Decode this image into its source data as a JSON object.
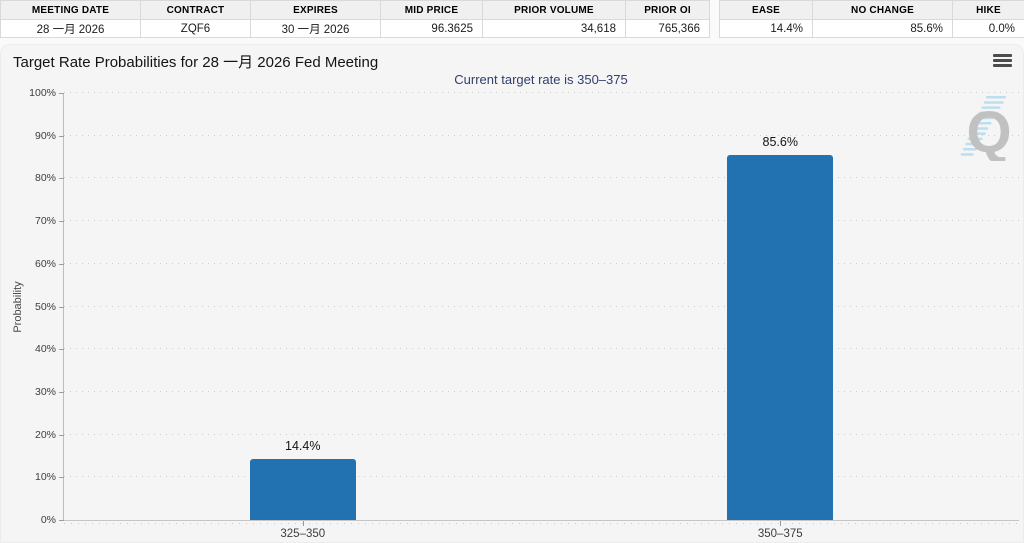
{
  "summary_table": {
    "columns": [
      {
        "label": "MEETING DATE",
        "value": "28 一月 2026"
      },
      {
        "label": "CONTRACT",
        "value": "ZQF6"
      },
      {
        "label": "EXPIRES",
        "value": "30 一月 2026"
      },
      {
        "label": "MID PRICE",
        "value": "96.3625"
      },
      {
        "label": "PRIOR VOLUME",
        "value": "34,618"
      },
      {
        "label": "PRIOR OI",
        "value": "765,366"
      }
    ]
  },
  "action_table": {
    "columns": [
      {
        "label": "EASE",
        "value": "14.4%"
      },
      {
        "label": "NO CHANGE",
        "value": "85.6%"
      },
      {
        "label": "HIKE",
        "value": "0.0%"
      }
    ]
  },
  "chart_data": {
    "type": "bar",
    "title": "Target Rate Probabilities for 28 一月 2026 Fed Meeting",
    "subtitle": "Current target rate is 350–375",
    "categories": [
      "325–350",
      "350–375"
    ],
    "values": [
      14.4,
      85.6
    ],
    "bar_labels": [
      "14.4%",
      "85.6%"
    ],
    "xlabel": "",
    "ylabel": "Probability",
    "ylim": [
      0,
      100
    ],
    "ytick_step": 10,
    "ytick_suffix": "%",
    "grid": "dotted-horizontal",
    "legend": "none",
    "bar_color": "#2271b0"
  },
  "watermark": {
    "letter": "Q"
  }
}
